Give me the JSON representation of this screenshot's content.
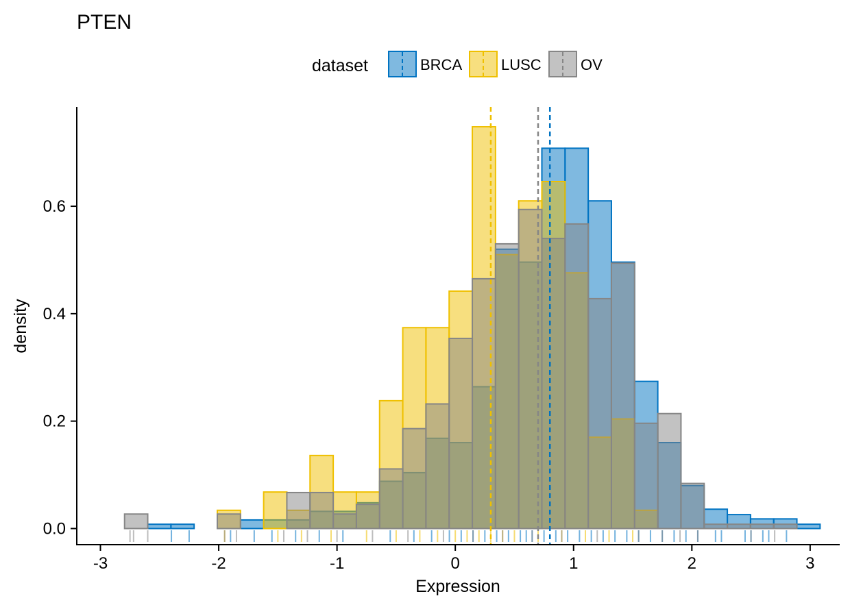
{
  "chart_data": {
    "type": "histogram",
    "title": "PTEN",
    "xlabel": "Expression",
    "ylabel": "density",
    "xlim": [
      -3.2,
      3.25
    ],
    "ylim": [
      -0.03,
      0.785
    ],
    "xticks": [
      -3,
      -2,
      -1,
      0,
      1,
      2,
      3
    ],
    "xtick_labels": [
      "-3",
      "-2",
      "-1",
      "0",
      "1",
      "2",
      "3"
    ],
    "yticks": [
      0.0,
      0.2,
      0.4,
      0.6
    ],
    "ytick_labels": [
      "0.0",
      "0.2",
      "0.4",
      "0.6"
    ],
    "grid": false,
    "legend": {
      "title": "dataset",
      "position": "top",
      "entries": [
        "BRCA",
        "LUSC",
        "OV"
      ]
    },
    "bin_width": 0.196,
    "series": [
      {
        "name": "BRCA",
        "fill": "#0073C2",
        "line": "#0073C2",
        "mean": 0.8,
        "bins": [
          {
            "x0": -2.6,
            "y": 0.008
          },
          {
            "x0": -2.404,
            "y": 0.008
          },
          {
            "x0": -1.816,
            "y": 0.016
          },
          {
            "x0": -1.62,
            "y": 0.016
          },
          {
            "x0": -1.424,
            "y": 0.016
          },
          {
            "x0": -1.228,
            "y": 0.032
          },
          {
            "x0": -1.032,
            "y": 0.032
          },
          {
            "x0": -0.836,
            "y": 0.048
          },
          {
            "x0": -0.64,
            "y": 0.088
          },
          {
            "x0": -0.444,
            "y": 0.104
          },
          {
            "x0": -0.248,
            "y": 0.168
          },
          {
            "x0": -0.052,
            "y": 0.16
          },
          {
            "x0": 0.144,
            "y": 0.264
          },
          {
            "x0": 0.34,
            "y": 0.52
          },
          {
            "x0": 0.536,
            "y": 0.496
          },
          {
            "x0": 0.732,
            "y": 0.708
          },
          {
            "x0": 0.928,
            "y": 0.708
          },
          {
            "x0": 1.124,
            "y": 0.61
          },
          {
            "x0": 1.32,
            "y": 0.496
          },
          {
            "x0": 1.516,
            "y": 0.274
          },
          {
            "x0": 1.712,
            "y": 0.16
          },
          {
            "x0": 1.908,
            "y": 0.08
          },
          {
            "x0": 2.104,
            "y": 0.036
          },
          {
            "x0": 2.3,
            "y": 0.026
          },
          {
            "x0": 2.496,
            "y": 0.018
          },
          {
            "x0": 2.692,
            "y": 0.018
          },
          {
            "x0": 2.888,
            "y": 0.008
          }
        ]
      },
      {
        "name": "LUSC",
        "fill": "#EFC000",
        "line": "#EFC000",
        "mean": 0.3,
        "bins": [
          {
            "x0": -2.012,
            "y": 0.034
          },
          {
            "x0": -1.62,
            "y": 0.068
          },
          {
            "x0": -1.424,
            "y": 0.034
          },
          {
            "x0": -1.228,
            "y": 0.136
          },
          {
            "x0": -1.032,
            "y": 0.068
          },
          {
            "x0": -0.836,
            "y": 0.068
          },
          {
            "x0": -0.64,
            "y": 0.238
          },
          {
            "x0": -0.444,
            "y": 0.374
          },
          {
            "x0": -0.248,
            "y": 0.374
          },
          {
            "x0": -0.052,
            "y": 0.442
          },
          {
            "x0": 0.144,
            "y": 0.748
          },
          {
            "x0": 0.34,
            "y": 0.51
          },
          {
            "x0": 0.536,
            "y": 0.61
          },
          {
            "x0": 0.732,
            "y": 0.646
          },
          {
            "x0": 0.928,
            "y": 0.476
          },
          {
            "x0": 1.124,
            "y": 0.17
          },
          {
            "x0": 1.32,
            "y": 0.204
          },
          {
            "x0": 1.516,
            "y": 0.034
          }
        ]
      },
      {
        "name": "OV",
        "fill": "#868686",
        "line": "#868686",
        "mean": 0.7,
        "bins": [
          {
            "x0": -2.796,
            "y": 0.027
          },
          {
            "x0": -2.012,
            "y": 0.027
          },
          {
            "x0": -1.424,
            "y": 0.067
          },
          {
            "x0": -1.228,
            "y": 0.067
          },
          {
            "x0": -1.032,
            "y": 0.027
          },
          {
            "x0": -0.836,
            "y": 0.045
          },
          {
            "x0": -0.64,
            "y": 0.111
          },
          {
            "x0": -0.444,
            "y": 0.186
          },
          {
            "x0": -0.248,
            "y": 0.232
          },
          {
            "x0": -0.052,
            "y": 0.354
          },
          {
            "x0": 0.144,
            "y": 0.465
          },
          {
            "x0": 0.34,
            "y": 0.53
          },
          {
            "x0": 0.536,
            "y": 0.594
          },
          {
            "x0": 0.732,
            "y": 0.54
          },
          {
            "x0": 0.928,
            "y": 0.567
          },
          {
            "x0": 1.124,
            "y": 0.428
          },
          {
            "x0": 1.32,
            "y": 0.494
          },
          {
            "x0": 1.516,
            "y": 0.196
          },
          {
            "x0": 1.712,
            "y": 0.214
          },
          {
            "x0": 1.908,
            "y": 0.084
          },
          {
            "x0": 2.104,
            "y": 0.008
          },
          {
            "x0": 2.3,
            "y": 0.008
          },
          {
            "x0": 2.496,
            "y": 0.008
          },
          {
            "x0": 2.692,
            "y": 0.008
          }
        ]
      }
    ],
    "rug": {
      "BRCA": [
        -2.4,
        -2.25,
        -1.9,
        -1.7,
        -1.55,
        -1.35,
        -1.15,
        -0.95,
        -0.55,
        -0.35,
        -0.2,
        -0.05,
        0.05,
        0.15,
        0.25,
        0.35,
        0.45,
        0.55,
        0.6,
        0.65,
        0.75,
        0.85,
        0.95,
        1.05,
        1.15,
        1.25,
        1.35,
        1.45,
        1.55,
        1.65,
        1.75,
        1.85,
        1.95,
        2.05,
        2.2,
        2.25,
        2.45,
        2.5,
        2.6,
        2.65,
        2.8
      ],
      "LUSC": [
        -1.95,
        -1.5,
        -1.3,
        -1.05,
        -0.75,
        -0.5,
        -0.3,
        -0.15,
        0.0,
        0.1,
        0.2,
        0.3,
        0.4,
        0.5,
        0.7,
        0.9,
        1.1,
        1.3,
        1.5
      ],
      "OV": [
        -2.75,
        -2.72,
        -2.6,
        -1.95,
        -1.85,
        -1.45,
        -1.25,
        -1.0,
        -0.7,
        -0.4,
        -0.1,
        0.15,
        0.4,
        0.65,
        0.9,
        1.2,
        1.55,
        1.75,
        1.9,
        2.05,
        2.5,
        2.7
      ]
    }
  }
}
